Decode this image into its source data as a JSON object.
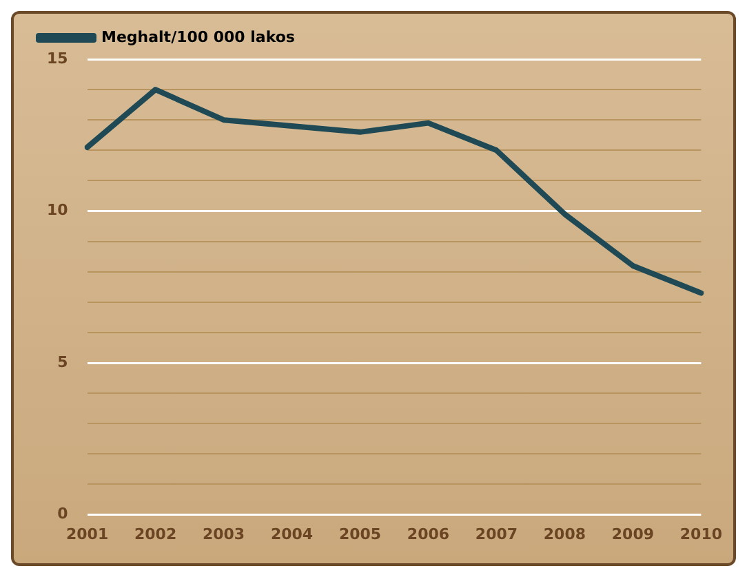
{
  "chart_data": {
    "type": "line",
    "categories": [
      "2001",
      "2002",
      "2003",
      "2004",
      "2005",
      "2006",
      "2007",
      "2008",
      "2009",
      "2010"
    ],
    "series": [
      {
        "name": "Meghalt/100 000 lakos",
        "color": "#1f4a55",
        "values": [
          12.1,
          14.0,
          13.0,
          12.8,
          12.6,
          12.9,
          12.0,
          9.9,
          8.2,
          7.3
        ]
      }
    ],
    "ylim": [
      0,
      15
    ],
    "yticks": [
      0,
      {
        "value": 1,
        "label": null
      },
      {
        "value": 2,
        "label": null
      },
      {
        "value": 3,
        "label": null
      },
      {
        "value": 4,
        "label": null
      },
      5,
      {
        "value": 6,
        "label": null
      },
      {
        "value": 7,
        "label": null
      },
      {
        "value": 8,
        "label": null
      },
      {
        "value": 9,
        "label": null
      },
      10,
      {
        "value": 11,
        "label": null
      },
      {
        "value": 12,
        "label": null
      },
      {
        "value": 13,
        "label": null
      },
      {
        "value": 14,
        "label": null
      },
      15
    ],
    "grid": "y",
    "legend": "top left",
    "marker": "none",
    "line_style": "solid"
  }
}
